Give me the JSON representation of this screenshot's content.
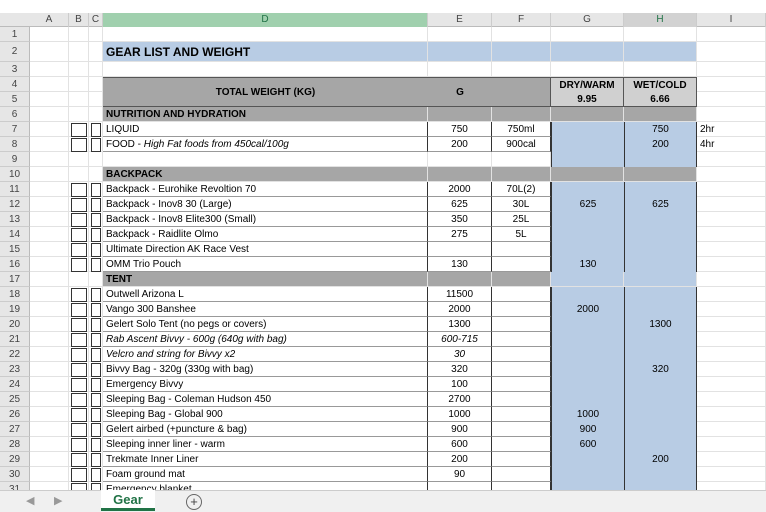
{
  "columns": [
    "A",
    "B",
    "C",
    "D",
    "E",
    "F",
    "G",
    "H",
    "I"
  ],
  "rows": [
    {
      "n": "1",
      "style": "blank"
    },
    {
      "n": "2",
      "style": "title",
      "d": "GEAR LIST AND WEIGHT"
    },
    {
      "n": "3",
      "style": "blank"
    },
    {
      "n": "4",
      "style": "header",
      "d": "TOTAL WEIGHT (KG)",
      "e": "G",
      "g": "DRY/WARM",
      "h": "WET/COLD"
    },
    {
      "n": "5",
      "style": "header2",
      "g": "9.95",
      "h": "6.66"
    },
    {
      "n": "6",
      "style": "section",
      "d": "NUTRITION AND HYDRATION"
    },
    {
      "n": "7",
      "style": "item",
      "d": "LIQUID",
      "e": "750",
      "f": "750ml",
      "h": "750",
      "i": "2hr"
    },
    {
      "n": "8",
      "style": "item",
      "d": "FOOD -",
      "d_italic": "High Fat foods from 450cal/100g",
      "e": "200",
      "f": "900cal",
      "h": "200",
      "i": "4hr"
    },
    {
      "n": "9",
      "style": "gap"
    },
    {
      "n": "10",
      "style": "section",
      "d": "BACKPACK"
    },
    {
      "n": "11",
      "style": "item",
      "d": "Backpack - Eurohike Revoltion 70",
      "e": "2000",
      "f": "70L(2)"
    },
    {
      "n": "12",
      "style": "item",
      "d": "Backpack - Inov8 30 (Large)",
      "e": "625",
      "f": "30L",
      "g": "625",
      "h": "625"
    },
    {
      "n": "13",
      "style": "item",
      "d": "Backpack - Inov8 Elite300 (Small)",
      "e": "350",
      "f": "25L"
    },
    {
      "n": "14",
      "style": "item",
      "d": "Backpack - Raidlite Olmo",
      "e": "275",
      "f": "5L"
    },
    {
      "n": "15",
      "style": "item",
      "d": "Ultimate Direction AK Race Vest"
    },
    {
      "n": "16",
      "style": "item",
      "d": "OMM Trio Pouch",
      "e": "130",
      "g": "130"
    },
    {
      "n": "17",
      "style": "subsection",
      "d": "TENT"
    },
    {
      "n": "18",
      "style": "item",
      "d": "Outwell Arizona L",
      "e": "11500"
    },
    {
      "n": "19",
      "style": "item",
      "d": "Vango 300 Banshee",
      "e": "2000",
      "g": "2000"
    },
    {
      "n": "20",
      "style": "item",
      "d": "Gelert Solo Tent (no pegs or covers)",
      "e": "1300",
      "h": "1300"
    },
    {
      "n": "21",
      "style": "item",
      "italic": true,
      "d": "Rab Ascent Bivvy - 600g (640g with bag)",
      "e": "600-715"
    },
    {
      "n": "22",
      "style": "item",
      "italic": true,
      "d": "Velcro and string for Bivvy x2",
      "e": "30"
    },
    {
      "n": "23",
      "style": "item",
      "d": "Bivvy Bag - 320g (330g with bag)",
      "e": "320",
      "h": "320"
    },
    {
      "n": "24",
      "style": "item",
      "d": "Emergency Bivvy",
      "e": "100"
    },
    {
      "n": "25",
      "style": "item",
      "d": "Sleeping Bag - Coleman Hudson 450",
      "e": "2700"
    },
    {
      "n": "26",
      "style": "item",
      "d": "Sleeping Bag - Global 900",
      "e": "1000",
      "g": "1000"
    },
    {
      "n": "27",
      "style": "item",
      "d": "Gelert airbed (+puncture & bag)",
      "e": "900",
      "g": "900"
    },
    {
      "n": "28",
      "style": "item",
      "d": "Sleeping inner liner - warm",
      "e": "600",
      "g": "600"
    },
    {
      "n": "29",
      "style": "item",
      "d": "Trekmate Inner Liner",
      "e": "200",
      "h": "200"
    },
    {
      "n": "30",
      "style": "item",
      "d": "Foam ground mat",
      "e": "90"
    },
    {
      "n": "31",
      "style": "item",
      "d": "Emergency blanket"
    }
  ],
  "sheet_tab": "Gear"
}
